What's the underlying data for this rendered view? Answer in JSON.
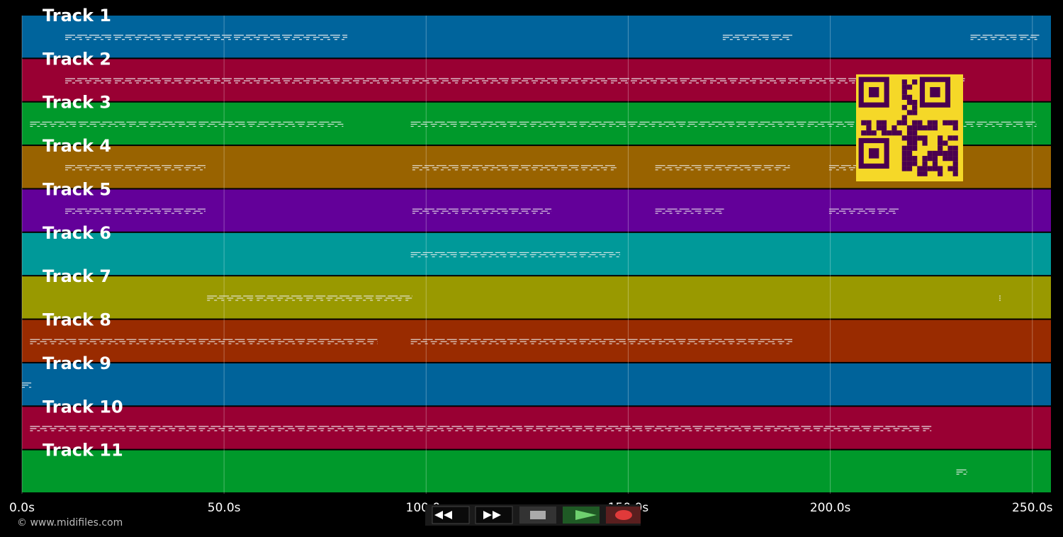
{
  "tracks": [
    {
      "label": "Track 1",
      "color": "#00649c",
      "segments": [
        [
          10.7,
          80.5
        ],
        [
          173.4,
          190.6
        ],
        [
          234.7,
          251.7
        ]
      ]
    },
    {
      "label": "Track 2",
      "color": "#990033",
      "segments": [
        [
          10.7,
          233.3
        ]
      ]
    },
    {
      "label": "Track 3",
      "color": "#00992b",
      "segments": [
        [
          2.0,
          79.5
        ],
        [
          96.2,
          251.0
        ]
      ]
    },
    {
      "label": "Track 4",
      "color": "#996300",
      "segments": [
        [
          10.7,
          45.4
        ],
        [
          96.6,
          147.1
        ],
        [
          156.7,
          190.0
        ],
        [
          199.7,
          210.0
        ]
      ]
    },
    {
      "label": "Track 5",
      "color": "#630099",
      "segments": [
        [
          10.7,
          45.4
        ],
        [
          96.6,
          131.0
        ],
        [
          156.7,
          173.7
        ],
        [
          199.7,
          216.9
        ]
      ]
    },
    {
      "label": "Track 6",
      "color": "#009999",
      "segments": [
        [
          96.2,
          148.0
        ]
      ]
    },
    {
      "label": "Track 7",
      "color": "#999900",
      "segments": [
        [
          45.8,
          96.6
        ],
        [
          241.8,
          242.0
        ]
      ]
    },
    {
      "label": "Track 8",
      "color": "#992b00",
      "segments": [
        [
          2.0,
          88.0
        ],
        [
          96.2,
          190.6
        ]
      ]
    },
    {
      "label": "Track 9",
      "color": "#00639a",
      "segments": [
        [
          0.0,
          2.3
        ]
      ]
    },
    {
      "label": "Track 10",
      "color": "#990033",
      "segments": [
        [
          2.0,
          225.0
        ]
      ]
    },
    {
      "label": "Track 11",
      "color": "#00992b",
      "segments": [
        [
          231.2,
          233.9
        ]
      ]
    }
  ],
  "xlim": [
    0,
    254.6
  ],
  "xticks": [
    {
      "value": 0,
      "label": "0.0s"
    },
    {
      "value": 50,
      "label": "50.0s"
    },
    {
      "value": 100,
      "label": "100.0s"
    },
    {
      "value": 150,
      "label": "150.0s"
    },
    {
      "value": 200,
      "label": "200.0s"
    },
    {
      "value": 250,
      "label": "250.0s"
    }
  ],
  "copyright": "© www.midifiles.com"
}
